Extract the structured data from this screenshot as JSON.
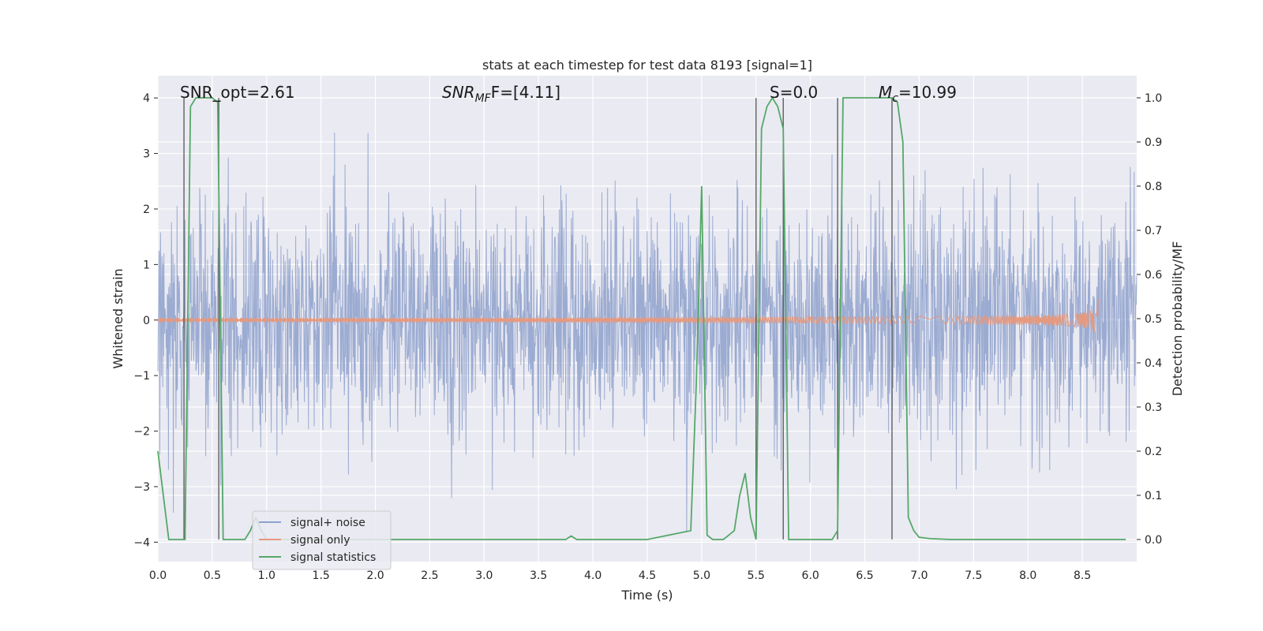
{
  "chart_data": {
    "type": "line",
    "title": "stats at each timestep for test data 8193 [signal=1]",
    "xlabel": "Time (s)",
    "ylabel_left": "Whitened strain",
    "ylabel_right": "Detection probability/MF",
    "xlim": [
      0.0,
      9.0
    ],
    "ylim_left": [
      -4.35,
      4.4
    ],
    "ylim_right": [
      -0.05,
      1.05
    ],
    "xticks": [
      0.0,
      0.5,
      1.0,
      1.5,
      2.0,
      2.5,
      3.0,
      3.5,
      4.0,
      4.5,
      5.0,
      5.5,
      6.0,
      6.5,
      7.0,
      7.5,
      8.0,
      8.5
    ],
    "xtick_labels": [
      "0.0",
      "0.5",
      "1.0",
      "1.5",
      "2.0",
      "2.5",
      "3.0",
      "3.5",
      "4.0",
      "4.5",
      "5.0",
      "5.5",
      "6.0",
      "6.5",
      "7.0",
      "7.5",
      "8.0",
      "8.5"
    ],
    "yticks_left": [
      4,
      3,
      2,
      1,
      0,
      -1,
      -2,
      -3,
      -4
    ],
    "ytick_labels_left": [
      "4",
      "3",
      "2",
      "1",
      "0",
      "−1",
      "−2",
      "−3",
      "−4"
    ],
    "yticks_right": [
      1.0,
      0.9,
      0.8,
      0.7,
      0.6,
      0.5,
      0.4,
      0.3,
      0.2,
      0.1,
      0.0
    ],
    "ytick_labels_right": [
      "1.0",
      "0.9",
      "0.8",
      "0.7",
      "0.6",
      "0.5",
      "0.4",
      "0.3",
      "0.2",
      "0.1",
      "0.0"
    ],
    "annotations": {
      "snr_opt": "SNR_opt=2.61",
      "snr_mf_base": "SNR",
      "snr_mf_sub": "MF",
      "snr_mf_value": "F=[4.11]",
      "s_stat": "S=0.0",
      "mc_base": "M",
      "mc_sub": "c",
      "mc_value": "=10.99"
    },
    "series": [
      {
        "name": "signal+ noise",
        "color": "#8da0cb",
        "noise_std": 1.05,
        "noise_clip": [
          -3.8,
          4.0
        ]
      },
      {
        "name": "signal only",
        "color": "#e5997f",
        "chirp_peak_time": 8.65,
        "chirp_peak_amplitude": 0.5
      },
      {
        "name": "signal statistics",
        "color": "#55a868",
        "axis": "right",
        "x": [
          0.0,
          0.05,
          0.1,
          0.25,
          0.3,
          0.35,
          0.4,
          0.45,
          0.5,
          0.55,
          0.6,
          0.65,
          0.7,
          0.75,
          0.8,
          0.85,
          0.9,
          0.95,
          1.0,
          1.1,
          1.5,
          2.0,
          2.5,
          3.0,
          3.5,
          3.75,
          3.8,
          3.85,
          3.9,
          4.5,
          4.9,
          4.95,
          5.0,
          5.05,
          5.1,
          5.2,
          5.3,
          5.35,
          5.4,
          5.45,
          5.5,
          5.55,
          5.6,
          5.65,
          5.7,
          5.75,
          5.8,
          5.85,
          6.0,
          6.2,
          6.25,
          6.3,
          6.35,
          6.5,
          6.75,
          6.8,
          6.85,
          6.9,
          6.95,
          7.0,
          7.1,
          7.3,
          8.0,
          8.9
        ],
        "y": [
          0.2,
          0.1,
          0.0,
          0.0,
          0.98,
          1.0,
          1.0,
          1.0,
          1.0,
          0.99,
          0.0,
          0.0,
          0.0,
          0.0,
          0.0,
          0.02,
          0.05,
          0.02,
          0.0,
          0.0,
          0.0,
          0.0,
          0.0,
          0.0,
          0.0,
          0.0,
          0.008,
          0.0,
          0.0,
          0.0,
          0.02,
          0.35,
          0.8,
          0.01,
          0.0,
          0.0,
          0.02,
          0.1,
          0.15,
          0.05,
          0.0,
          0.93,
          0.98,
          1.0,
          0.98,
          0.93,
          0.0,
          0.0,
          0.0,
          0.0,
          0.02,
          1.0,
          1.0,
          1.0,
          1.0,
          0.99,
          0.9,
          0.05,
          0.02,
          0.005,
          0.002,
          0.0,
          0.0,
          0.0
        ]
      }
    ],
    "vertical_lines": [
      0.24,
      0.56,
      5.5,
      5.75,
      6.25,
      6.75
    ],
    "legend_position": "lower-left"
  }
}
